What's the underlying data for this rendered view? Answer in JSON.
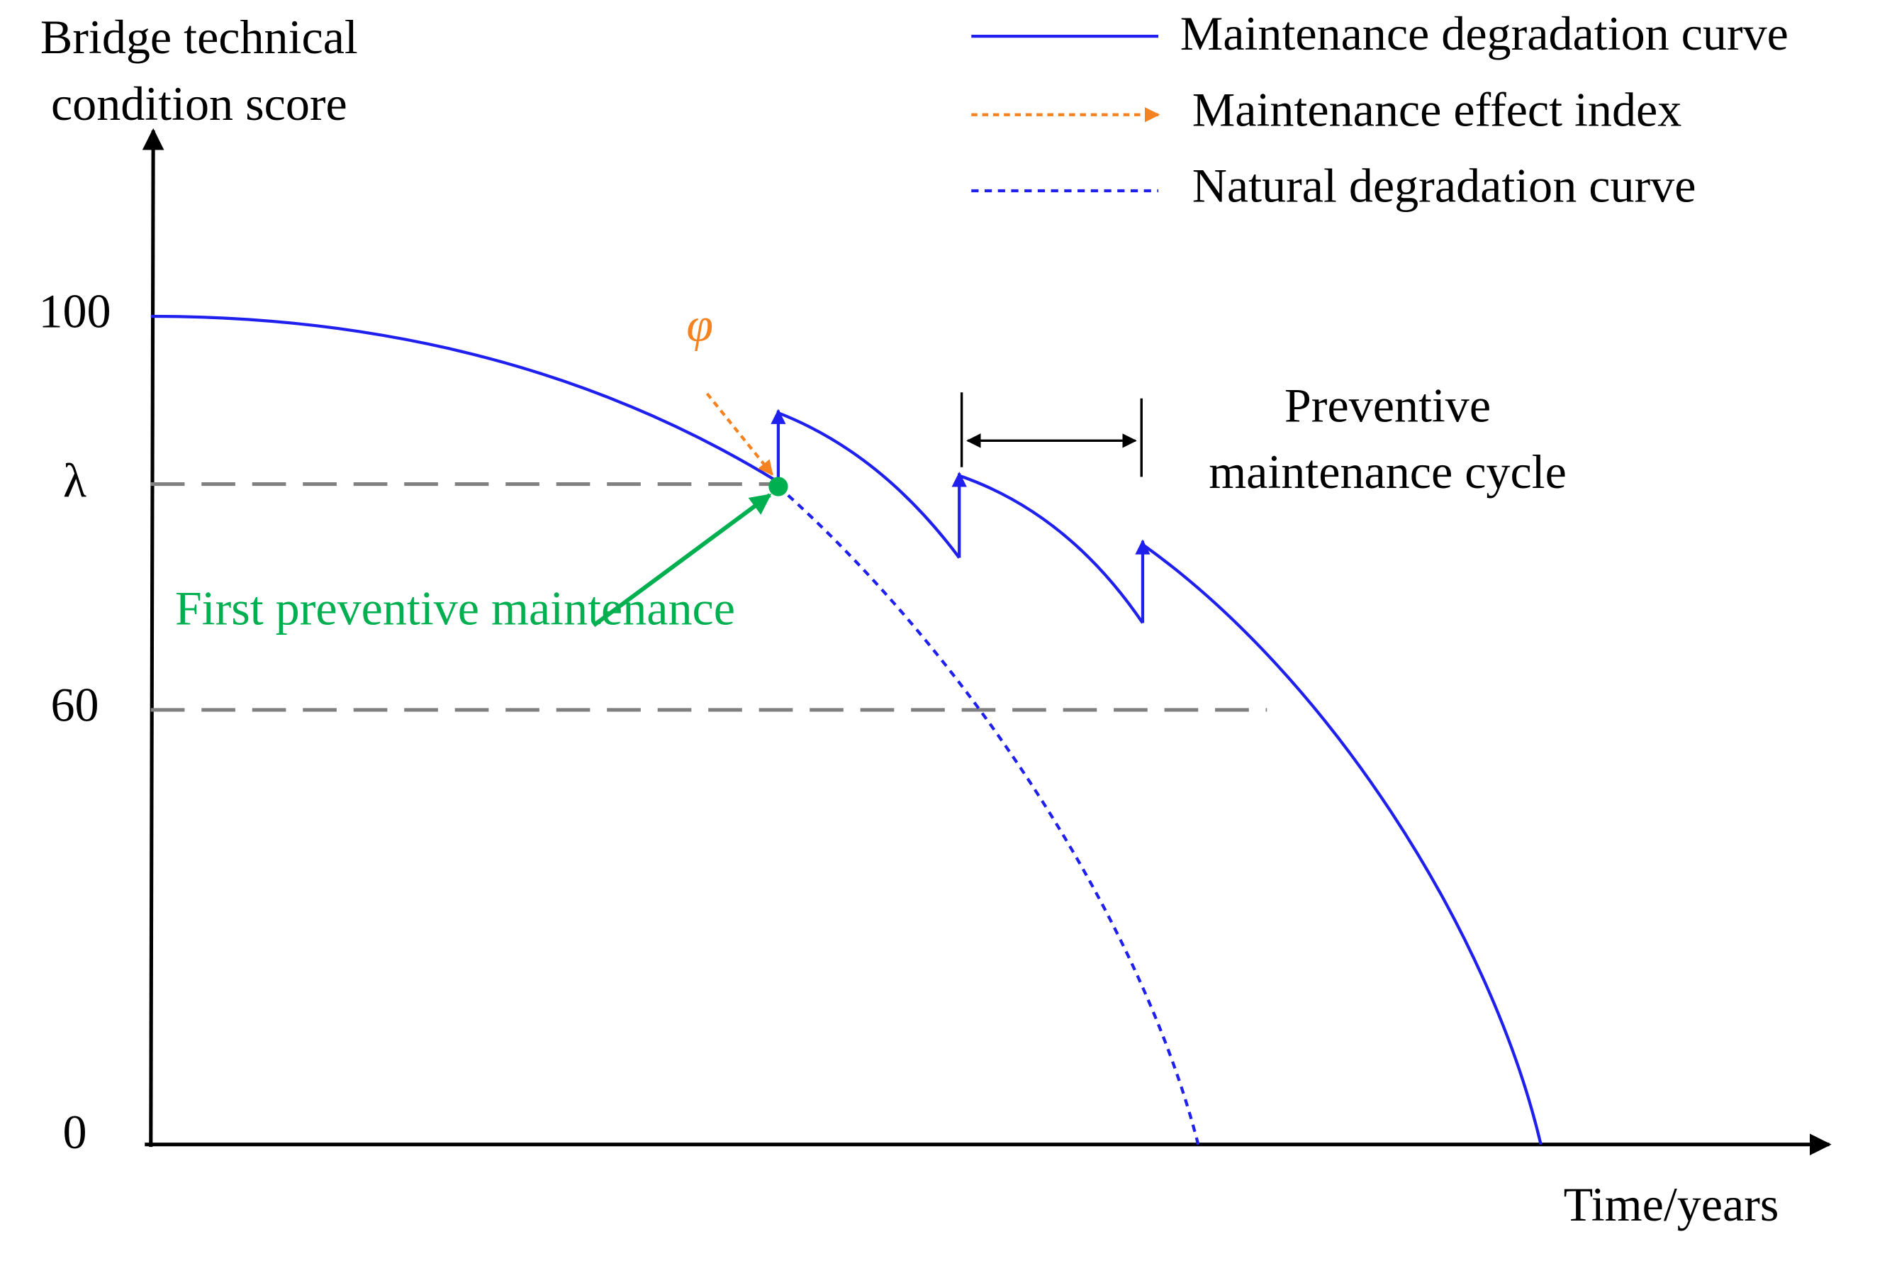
{
  "axes": {
    "y_label": [
      "Bridge technical",
      "condition score"
    ],
    "x_label": "Time/years",
    "y_ticks": [
      100,
      "λ",
      60,
      0
    ]
  },
  "legend": [
    "Maintenance degradation curve",
    "Maintenance effect index",
    "Natural degradation curve"
  ],
  "annotations": {
    "phi": "φ",
    "first": "First preventive maintenance",
    "cycle": [
      "Preventive",
      "maintenance cycle"
    ]
  }
}
